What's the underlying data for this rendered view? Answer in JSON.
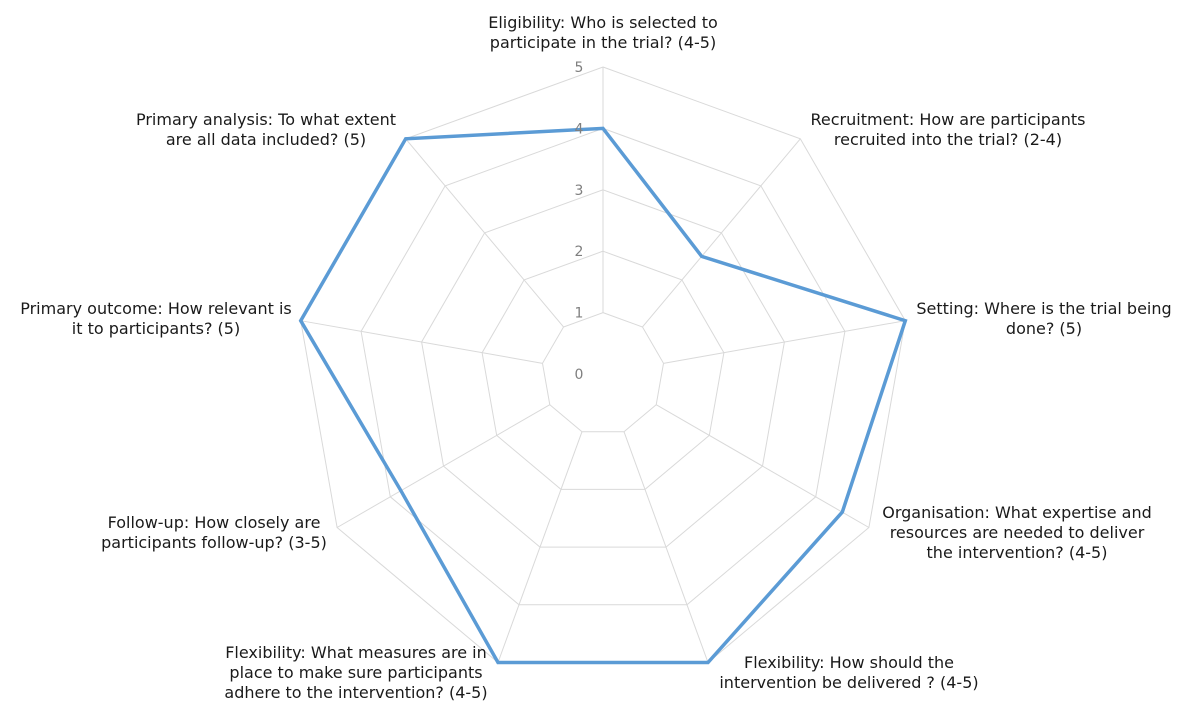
{
  "chart_data": {
    "type": "radar",
    "title": "",
    "categories": [
      "Eligibility: Who is selected to participate in the trial? (4-5)",
      "Recruitment: How are participants recruited into the trial? (2-4)",
      "Setting: Where is the trial being done? (5)",
      "Organisation:  What expertise and resources are needed to deliver the intervention? (4-5)",
      "Flexibility: How should the intervention be delivered ? (4-5)",
      "Flexibility: What measures are in place to make sure participants adhere to the intervention? (4-5)",
      "Follow-up: How closely are participants follow-up? (3-5)",
      "Primary outcome: How relevant is it to participants? (5)",
      "Primary analysis: To what extent are all data included? (5)"
    ],
    "category_lines": [
      [
        "Eligibility: Who is selected to",
        "participate in the trial? (4-5)"
      ],
      [
        "Recruitment: How are participants",
        "recruited into the trial? (2-4)"
      ],
      [
        "Setting: Where is the trial being",
        "done? (5)"
      ],
      [
        "Organisation:  What expertise and",
        "resources are needed to deliver",
        "the intervention? (4-5)"
      ],
      [
        "Flexibility: How should the",
        "intervention be delivered ? (4-5)"
      ],
      [
        "Flexibility: What measures are in",
        "place to make sure participants",
        "adhere to the intervention? (4-5)"
      ],
      [
        "Follow-up: How closely are",
        "participants follow-up? (3-5)"
      ],
      [
        "Primary outcome: How relevant is",
        "it to participants? (5)"
      ],
      [
        "Primary analysis: To what extent",
        "are all data included? (5)"
      ]
    ],
    "series": [
      {
        "values": [
          4,
          2.5,
          5,
          4.5,
          5,
          5,
          3.8,
          5,
          5
        ]
      }
    ],
    "rlim": [
      0,
      5
    ],
    "ticks": [
      0,
      1,
      2,
      3,
      4,
      5
    ],
    "grid": true,
    "legend": "none",
    "colors": {
      "series": "#5b9bd5",
      "grid": "#d9d9d9",
      "tick_text": "#7f7f7f",
      "label_text": "#1a1a1a"
    }
  }
}
